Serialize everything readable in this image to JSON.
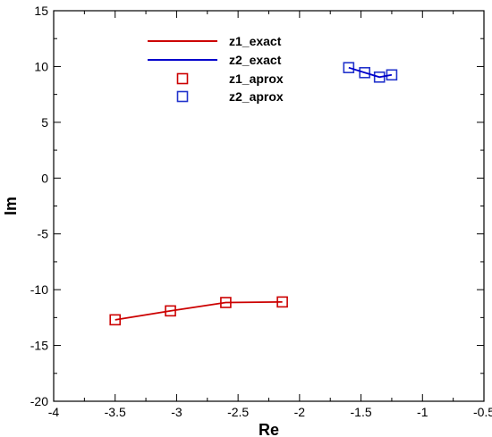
{
  "chart_data": {
    "type": "line",
    "xlabel": "Re",
    "ylabel": "Im",
    "xlim": [
      -4,
      -0.5
    ],
    "ylim": [
      -20,
      15
    ],
    "xticks": [
      -4,
      -3.5,
      -3,
      -2.5,
      -2,
      -1.5,
      -1,
      -0.5
    ],
    "yticks": [
      -20,
      -15,
      -10,
      -5,
      0,
      5,
      10,
      15
    ],
    "xtick_labels": [
      "-4",
      "-3.5",
      "-3",
      "-2.5",
      "-2",
      "-1.5",
      "-1",
      "-0.5"
    ],
    "ytick_labels": [
      "-20",
      "-15",
      "-10",
      "-5",
      "0",
      "5",
      "10",
      "15"
    ],
    "grid": false,
    "legend_position": "top-left",
    "series": [
      {
        "name": "z1_exact",
        "style": "line",
        "color": "#cc0000",
        "x": [
          -3.5,
          -3.05,
          -2.6,
          -2.14
        ],
        "y": [
          -12.7,
          -11.9,
          -11.15,
          -11.1
        ]
      },
      {
        "name": "z2_exact",
        "style": "line",
        "color": "#0000cc",
        "x": [
          -1.6,
          -1.47,
          -1.35,
          -1.25
        ],
        "y": [
          9.9,
          9.45,
          9.05,
          9.25
        ]
      },
      {
        "name": "z1_aprox",
        "style": "marker",
        "color": "#cc0000",
        "x": [
          -3.5,
          -3.05,
          -2.6,
          -2.14
        ],
        "y": [
          -12.7,
          -11.9,
          -11.15,
          -11.1
        ]
      },
      {
        "name": "z2_aprox",
        "style": "marker",
        "color": "#2233cc",
        "x": [
          -1.6,
          -1.47,
          -1.35,
          -1.25
        ],
        "y": [
          9.9,
          9.45,
          9.05,
          9.25
        ]
      }
    ]
  }
}
